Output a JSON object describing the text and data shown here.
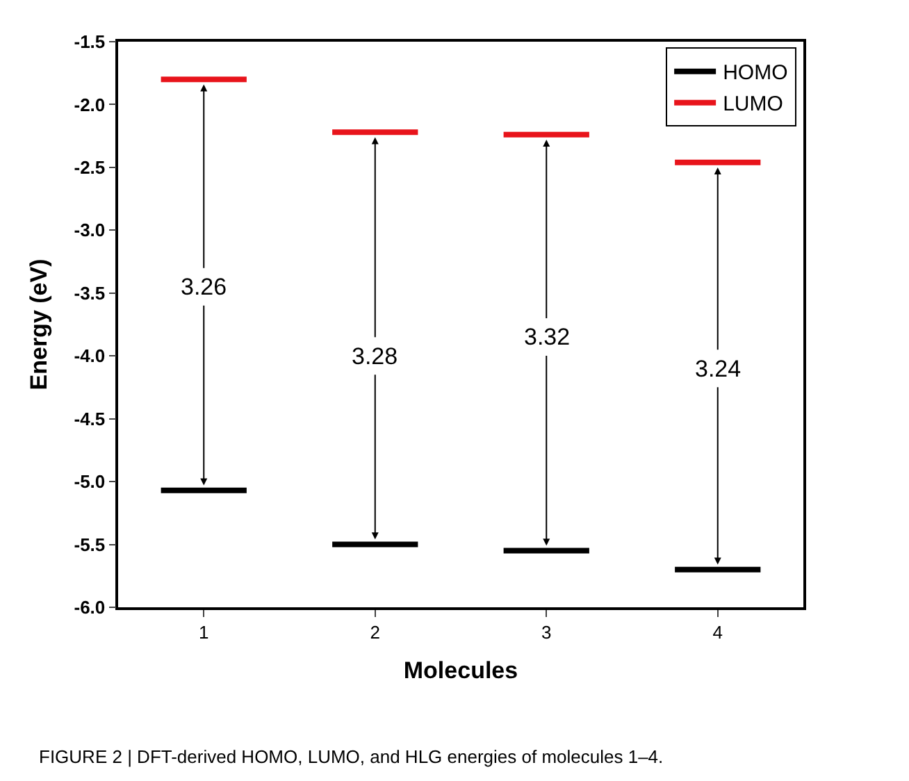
{
  "chart_data": {
    "type": "line",
    "xlabel": "Molecules",
    "ylabel": "Energy (eV)",
    "series": [
      {
        "name": "HOMO",
        "color": "#000000",
        "x": [
          0.75,
          1.25
        ],
        "values": [
          -5.07,
          -5.07
        ]
      },
      {
        "color": "#000000",
        "x": [
          1.75,
          2.25
        ],
        "values": [
          -5.5,
          -5.5
        ]
      },
      {
        "color": "#000000",
        "x": [
          2.75,
          3.25
        ],
        "values": [
          -5.55,
          -5.55
        ]
      },
      {
        "color": "#000000",
        "x": [
          3.75,
          4.25
        ],
        "values": [
          -5.7,
          -5.7
        ]
      },
      {
        "name": "LUMO",
        "color": "#e8141b",
        "x": [
          0.75,
          1.25
        ],
        "values": [
          -1.8,
          -1.8
        ]
      },
      {
        "color": "#e8141b",
        "x": [
          1.75,
          2.25
        ],
        "values": [
          -2.22,
          -2.22
        ]
      },
      {
        "color": "#e8141b",
        "x": [
          2.75,
          3.25
        ],
        "values": [
          -2.24,
          -2.24
        ]
      },
      {
        "color": "#e8141b",
        "x": [
          3.75,
          4.25
        ],
        "values": [
          -2.46,
          -2.46
        ]
      }
    ],
    "xlim": [
      0.5,
      4.5
    ],
    "xticks": [
      1,
      2,
      3,
      4
    ],
    "ylim": [
      -6.0,
      -1.5
    ],
    "yticks": [
      {
        "value": -6.0,
        "label": "-6.0"
      },
      {
        "value": -5.5,
        "label": "-5.5"
      },
      {
        "value": -5.0,
        "label": "-5.0"
      },
      {
        "value": -4.5,
        "label": "-4.5"
      },
      {
        "value": -4.0,
        "label": "-4.0"
      },
      {
        "value": -3.5,
        "label": "-3.5"
      },
      {
        "value": -3.0,
        "label": "-3.0"
      },
      {
        "value": -2.5,
        "label": "-2.5"
      },
      {
        "value": -2.0,
        "label": "-2.0"
      },
      {
        "value": -1.5,
        "label": "-1.5"
      }
    ],
    "annotations": [
      {
        "text": "3.26",
        "x": 1,
        "y": -3.45
      },
      {
        "text": "3.28",
        "x": 2,
        "y": -4.0
      },
      {
        "text": "3.32",
        "x": 3,
        "y": -3.85
      },
      {
        "text": "3.24",
        "x": 4,
        "y": -4.1
      },
      "FIGURE 2 | DFT-derived HOMO, LUMO, and HLG energies of molecules 1–4."
    ],
    "legend": "top right"
  }
}
